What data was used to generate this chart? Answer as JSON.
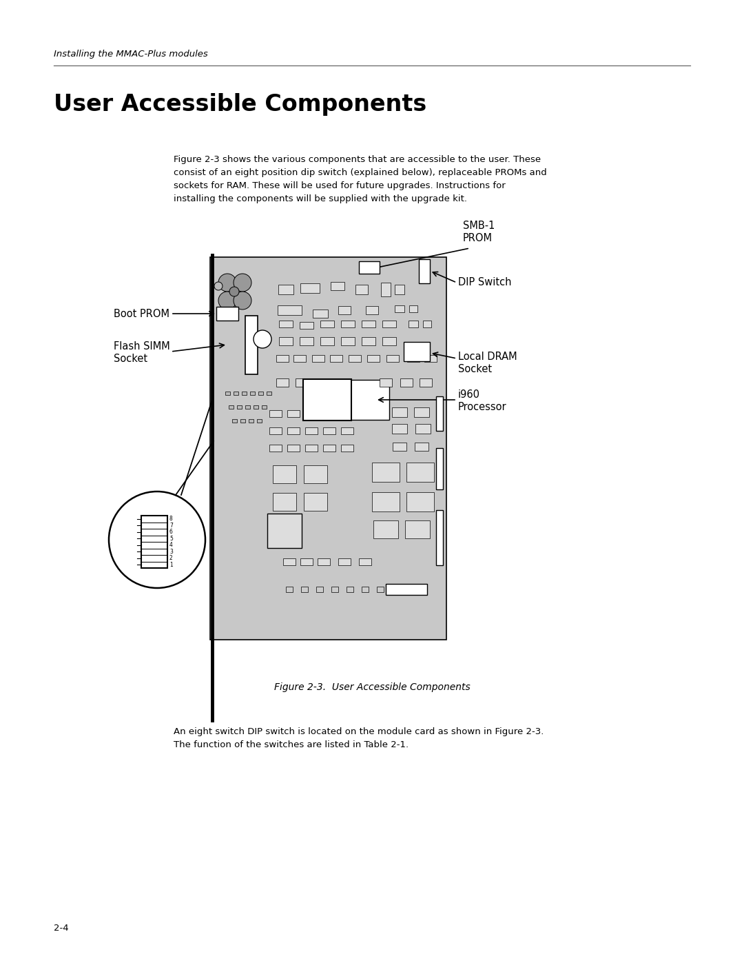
{
  "bg_color": "#ffffff",
  "page_width": 10.8,
  "page_height": 13.97,
  "header_italic": "Installing the MMAC-Plus modules",
  "section_title": "User Accessible Components",
  "body_text_line1": "Figure 2-3 shows the various components that are accessible to the user. These",
  "body_text_line2": "consist of an eight position dip switch (explained below), replaceable PROMs and",
  "body_text_line3": "sockets for RAM. These will be used for future upgrades. Instructions for",
  "body_text_line4": "installing the components will be supplied with the upgrade kit.",
  "figure_caption": "Figure 2-3.  User Accessible Components",
  "footer_text": "2-4",
  "bottom_text_line1": "An eight switch DIP switch is located on the module card as shown in Figure 2-3.",
  "bottom_text_line2": "The function of the switches are listed in Table 2-1.",
  "label_smb1": "SMB-1",
  "label_prom": "PROM",
  "label_dip": "DIP Switch",
  "label_boot": "Boot PROM",
  "label_flash1": "Flash SIMM",
  "label_flash2": "Socket",
  "label_dram1": "Local DRAM",
  "label_dram2": "Socket",
  "label_i9601": "i960",
  "label_i9602": "Processor",
  "board_gray": "#c8c8c8",
  "line_color": "#000000"
}
